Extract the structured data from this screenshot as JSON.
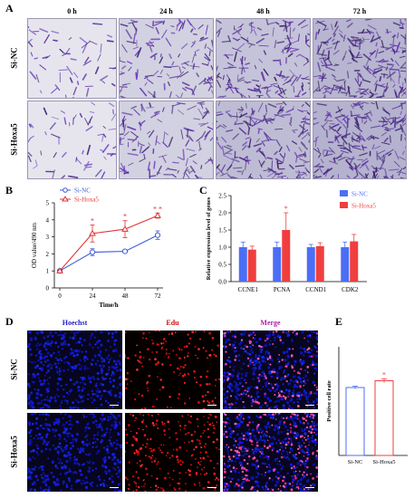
{
  "panel_a": {
    "letter": "A",
    "columns": [
      "0 h",
      "24 h",
      "48 h",
      "72 h"
    ],
    "rows": [
      "Si-NC",
      "Si-Hoxa5"
    ],
    "cell_density": [
      [
        0.15,
        0.45,
        0.65,
        0.85
      ],
      [
        0.15,
        0.45,
        0.75,
        0.9
      ]
    ]
  },
  "panel_b": {
    "letter": "B",
    "chart_data": {
      "type": "line",
      "x": [
        0,
        24,
        48,
        72
      ],
      "xlabel": "Time/h",
      "ylabel": "OD value/490 nm",
      "xlim": [
        0,
        72
      ],
      "ylim": [
        0,
        5
      ],
      "yticks": [
        0,
        1,
        2,
        3,
        4,
        5
      ],
      "xticks": [
        0,
        24,
        48,
        72
      ],
      "legend_position": "top-left",
      "series": [
        {
          "name": "Si-NC",
          "color": "#3b5bdb",
          "marker": "circle-open",
          "values": [
            1.0,
            2.1,
            2.15,
            3.1
          ],
          "errors": [
            0.05,
            0.2,
            0.08,
            0.25
          ]
        },
        {
          "name": "Si-Hoxa5",
          "color": "#e03131",
          "marker": "triangle-open",
          "values": [
            1.0,
            3.2,
            3.45,
            4.25
          ],
          "errors": [
            0.05,
            0.5,
            0.5,
            0.15
          ]
        }
      ],
      "annotations": [
        {
          "x": 24,
          "text": "*"
        },
        {
          "x": 48,
          "text": "*"
        },
        {
          "x": 72,
          "text": "* *"
        }
      ]
    }
  },
  "panel_c": {
    "letter": "C",
    "chart_data": {
      "type": "bar",
      "categories": [
        "CCNE1",
        "PCNA",
        "CCND1",
        "CDK2"
      ],
      "ylabel": "Relative expression level of genes",
      "ylim": [
        0,
        2.5
      ],
      "yticks": [
        0.0,
        0.5,
        1.0,
        1.5,
        2.0,
        2.5
      ],
      "legend_position": "top-right",
      "series": [
        {
          "name": "Si-NC",
          "color": "#4c6ef5",
          "values": [
            1.0,
            1.0,
            1.0,
            1.0
          ],
          "errors": [
            0.15,
            0.15,
            0.08,
            0.15
          ]
        },
        {
          "name": "Si-Hoxa5",
          "color": "#f03e3e",
          "values": [
            0.93,
            1.5,
            1.03,
            1.17
          ],
          "errors": [
            0.1,
            0.5,
            0.1,
            0.2
          ]
        }
      ],
      "annotations": [
        {
          "category": "PCNA",
          "text": "*"
        }
      ]
    }
  },
  "panel_d": {
    "letter": "D",
    "columns": [
      "Hoechst",
      "Edu",
      "Merge"
    ],
    "column_colors": [
      "#2222cc",
      "#cc1111",
      "#aa22aa"
    ],
    "rows": [
      "Si-NC",
      "Si-Hoxa5"
    ],
    "red_density": [
      0.35,
      0.7
    ]
  },
  "panel_e": {
    "letter": "E",
    "chart_data": {
      "type": "bar",
      "categories": [
        "Si-NC",
        "Si-Hoxa5"
      ],
      "ylabel": "Positive cell rate",
      "colors": [
        "#4c6ef5",
        "#f03e3e"
      ],
      "values": [
        1.0,
        1.1
      ],
      "errors": [
        0.02,
        0.03
      ],
      "ylim": [
        0,
        1.6
      ],
      "annotations": [
        {
          "category": "Si-Hoxa5",
          "text": "*"
        }
      ]
    }
  }
}
